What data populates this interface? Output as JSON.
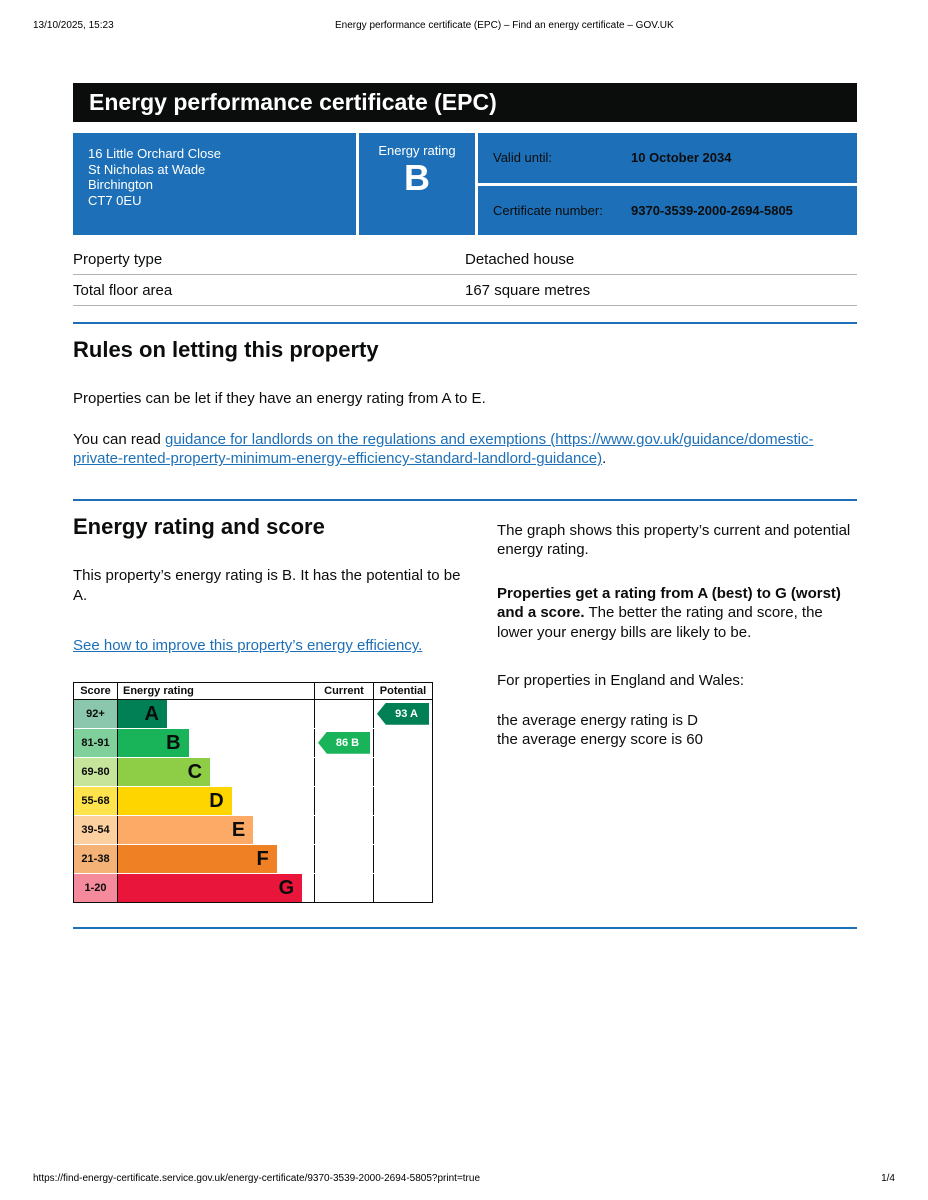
{
  "colors": {
    "govuk_blue": "#1d70b8",
    "banner_black": "#0b0c0c"
  },
  "print_header": {
    "datetime": "13/10/2025, 15:23",
    "title": "Energy performance certificate (EPC) – Find an energy certificate – GOV.UK"
  },
  "banner": {
    "title": "Energy performance certificate (EPC)"
  },
  "summary": {
    "address_lines": [
      "16 Little Orchard Close",
      "St Nicholas at Wade",
      "Birchington",
      "CT7 0EU"
    ],
    "energy_rating_label": "Energy rating",
    "energy_rating_letter": "B",
    "valid_until_label": "Valid until:",
    "valid_until_value": "10 October 2034",
    "certificate_label": "Certificate number:",
    "certificate_value": "9370-3539-2000-2694-5805"
  },
  "property_details": {
    "rows": [
      {
        "label": "Property type",
        "value": "Detached house"
      },
      {
        "label": "Total floor area",
        "value": "167 square metres"
      }
    ]
  },
  "letting_rules": {
    "heading": "Rules on letting this property",
    "para1": "Properties can be let if they have an energy rating from A to E.",
    "para2_prefix": "You can read ",
    "link_text": "guidance for landlords on the regulations and exemptions (https://www.gov.uk/guidance/domestic-private-rented-property-minimum-energy-efficiency-standard-landlord-guidance)",
    "para2_suffix": "."
  },
  "rating_section": {
    "heading": "Energy rating and score",
    "left_para": "This property’s energy rating is B. It has the potential to be A.",
    "improve_link": "See how to improve this property’s energy efficiency.",
    "right_para1": "The graph shows this property’s current and potential energy rating.",
    "right_para2_bold": "Properties get a rating from A (best) to G (worst) and a score.",
    "right_para2_rest": " The better the rating and score, the lower your energy bills are likely to be.",
    "right_para3": "For properties in England and Wales:",
    "right_para4_line1": "the average energy rating is D",
    "right_para4_line2": "the average energy score is 60"
  },
  "chart_data": {
    "type": "bar",
    "title": "Energy rating and score",
    "columns": {
      "score": "Score",
      "rating": "Energy rating",
      "current": "Current",
      "potential": "Potential"
    },
    "bands": [
      {
        "range": "92+",
        "letter": "A",
        "color": "#008054",
        "score_bg": "#8bc7ad",
        "width_pct": 25
      },
      {
        "range": "81-91",
        "letter": "B",
        "color": "#19b459",
        "score_bg": "#7fd09b",
        "width_pct": 36
      },
      {
        "range": "69-80",
        "letter": "C",
        "color": "#8dce46",
        "score_bg": "#c6e59b",
        "width_pct": 47
      },
      {
        "range": "55-68",
        "letter": "D",
        "color": "#ffd500",
        "score_bg": "#ffe34d",
        "width_pct": 58
      },
      {
        "range": "39-54",
        "letter": "E",
        "color": "#fcaa65",
        "score_bg": "#fdd0a0",
        "width_pct": 69
      },
      {
        "range": "21-38",
        "letter": "F",
        "color": "#ef8023",
        "score_bg": "#f5b277",
        "width_pct": 81
      },
      {
        "range": "1-20",
        "letter": "G",
        "color": "#e9153b",
        "score_bg": "#f48a9b",
        "width_pct": 94
      }
    ],
    "current": {
      "score": 86,
      "letter": "B",
      "label": "86 B",
      "color": "#19b459",
      "band_index": 1
    },
    "potential": {
      "score": 93,
      "letter": "A",
      "label": "93 A",
      "color": "#008054",
      "band_index": 0
    }
  },
  "print_footer": {
    "url": "https://find-energy-certificate.service.gov.uk/energy-certificate/9370-3539-2000-2694-5805?print=true",
    "page": "1/4"
  }
}
